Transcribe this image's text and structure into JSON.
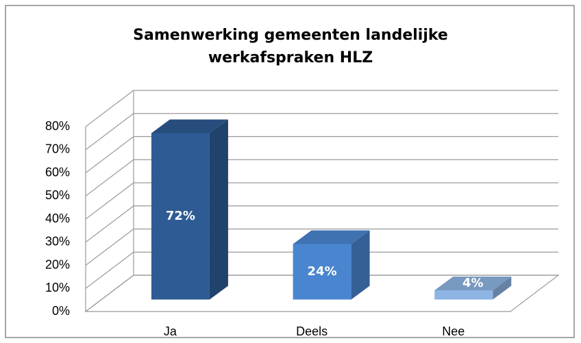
{
  "chart_data": {
    "type": "bar3d",
    "title": [
      "Samenwerking gemeenten landelijke",
      "werkafspraken HLZ"
    ],
    "categories": [
      "Ja",
      "Deels",
      "Nee"
    ],
    "values": [
      72,
      24,
      4
    ],
    "value_labels": [
      "72%",
      "24%",
      "4%"
    ],
    "colors": [
      "#2e5b93",
      "#4a86d0",
      "#8db4e2"
    ],
    "ylim": [
      0,
      80
    ],
    "yticks": [
      {
        "value": 0,
        "label": "0%"
      },
      {
        "value": 10,
        "label": "10%"
      },
      {
        "value": 20,
        "label": "20%"
      },
      {
        "value": 30,
        "label": "30%"
      },
      {
        "value": 40,
        "label": "40%"
      },
      {
        "value": 50,
        "label": "50%"
      },
      {
        "value": 60,
        "label": "60%"
      },
      {
        "value": 70,
        "label": "70%"
      },
      {
        "value": 80,
        "label": "80%"
      }
    ],
    "grid": true
  }
}
